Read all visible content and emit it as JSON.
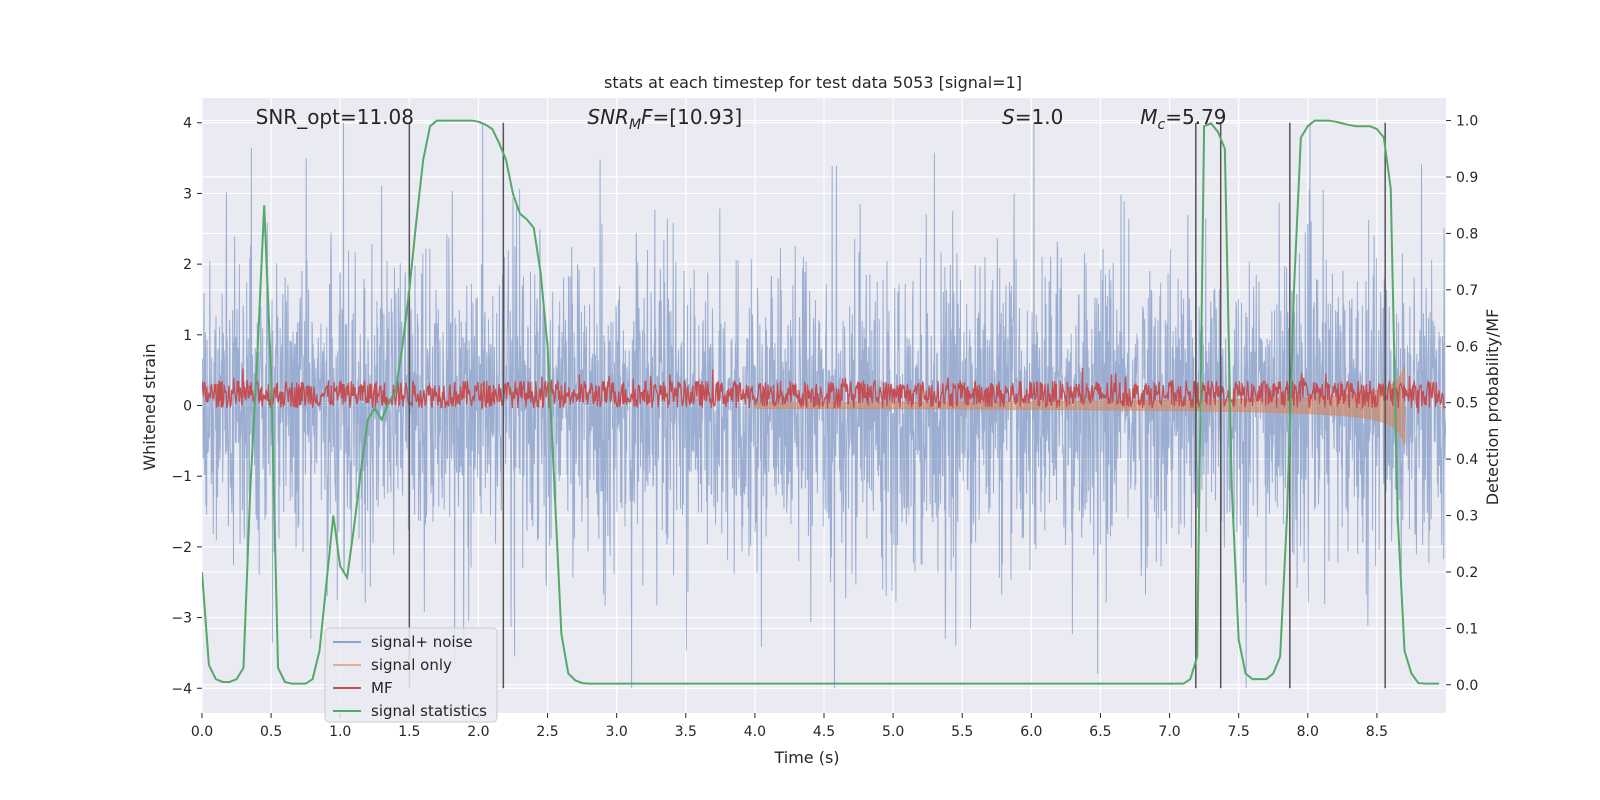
{
  "chart_data": {
    "type": "line",
    "title": "stats at each timestep for test data 5053 [signal=1]",
    "xlabel": "Time (s)",
    "ylabel": "Whitened strain",
    "y2label": "Detection probability/MF",
    "xlim": [
      0.0,
      9.0
    ],
    "ylim": [
      -4.35,
      4.35
    ],
    "y2lim": [
      -0.05,
      1.04
    ],
    "x_ticks": [
      0.0,
      0.5,
      1.0,
      1.5,
      2.0,
      2.5,
      3.0,
      3.5,
      4.0,
      4.5,
      5.0,
      5.5,
      6.0,
      6.5,
      7.0,
      7.5,
      8.0,
      8.5
    ],
    "x_tick_labels": [
      "0.0",
      "0.5",
      "1.0",
      "1.5",
      "2.0",
      "2.5",
      "3.0",
      "3.5",
      "4.0",
      "4.5",
      "5.0",
      "5.5",
      "6.0",
      "6.5",
      "7.0",
      "7.5",
      "8.0",
      "8.5"
    ],
    "y_ticks": [
      -4,
      -3,
      -2,
      -1,
      0,
      1,
      2,
      3,
      4
    ],
    "y_tick_labels": [
      "−4",
      "−3",
      "−2",
      "−1",
      "0",
      "1",
      "2",
      "3",
      "4"
    ],
    "y2_ticks": [
      0.0,
      0.1,
      0.2,
      0.3,
      0.4,
      0.5,
      0.6,
      0.7,
      0.8,
      0.9,
      1.0
    ],
    "y2_tick_labels": [
      "0.0",
      "0.1",
      "0.2",
      "0.3",
      "0.4",
      "0.5",
      "0.6",
      "0.7",
      "0.8",
      "0.9",
      "1.0"
    ],
    "grid": true,
    "legend_position": "lower-left",
    "annotations": [
      {
        "id": "snr-opt",
        "x": 0.2,
        "text": "SNR_opt=11.08"
      },
      {
        "id": "snr-mf",
        "x": 2.6,
        "text": "SNRₘF=[10.93]",
        "base": "SNR",
        "sub": "M",
        "tail": "F=[10.93]"
      },
      {
        "id": "s-value",
        "x": 5.6,
        "text": "S=1.0",
        "base": "S",
        "tail": "=1.0"
      },
      {
        "id": "mc-value",
        "x": 6.6,
        "text": "Mc=5.79",
        "base": "M",
        "sub": "c",
        "tail": "=5.79"
      }
    ],
    "vertical_lines": [
      1.5,
      2.18,
      7.19,
      7.37,
      7.87,
      8.56
    ],
    "series": [
      {
        "name": "signal+ noise",
        "color": "#4c72b0",
        "axis": "left",
        "kind": "noise",
        "amplitude_range": [
          -4.0,
          4.0
        ],
        "x_range": [
          0.0,
          9.0
        ]
      },
      {
        "name": "signal only",
        "color": "#dd8452",
        "axis": "left",
        "kind": "chirp",
        "chirp_start": 4.0,
        "chirp_end": 8.7,
        "amplitude_at_end": 1.0
      },
      {
        "name": "MF",
        "color": "#c44e52",
        "axis": "right",
        "kind": "mf",
        "baseline": 0.515,
        "spread": 0.035,
        "x_range": [
          0.0,
          9.0
        ]
      },
      {
        "name": "signal statistics",
        "color": "#55a868",
        "axis": "right",
        "x": [
          0.0,
          0.05,
          0.1,
          0.15,
          0.2,
          0.25,
          0.3,
          0.35,
          0.4,
          0.45,
          0.5,
          0.55,
          0.6,
          0.65,
          0.7,
          0.75,
          0.8,
          0.85,
          0.9,
          0.95,
          1.0,
          1.05,
          1.1,
          1.15,
          1.2,
          1.25,
          1.3,
          1.35,
          1.4,
          1.45,
          1.5,
          1.55,
          1.6,
          1.65,
          1.7,
          1.75,
          1.8,
          1.85,
          1.9,
          1.95,
          2.0,
          2.05,
          2.1,
          2.15,
          2.2,
          2.25,
          2.3,
          2.35,
          2.4,
          2.45,
          2.5,
          2.55,
          2.6,
          2.65,
          2.7,
          2.75,
          2.8,
          2.9,
          3.0,
          3.5,
          4.0,
          4.5,
          5.0,
          5.5,
          6.0,
          6.5,
          7.0,
          7.1,
          7.15,
          7.2,
          7.25,
          7.3,
          7.35,
          7.4,
          7.45,
          7.5,
          7.55,
          7.6,
          7.65,
          7.7,
          7.75,
          7.8,
          7.85,
          7.9,
          7.95,
          8.0,
          8.05,
          8.1,
          8.15,
          8.2,
          8.25,
          8.3,
          8.35,
          8.4,
          8.45,
          8.5,
          8.55,
          8.6,
          8.65,
          8.7,
          8.75,
          8.8,
          8.85,
          8.9,
          8.95
        ],
        "values": [
          0.2,
          0.035,
          0.01,
          0.005,
          0.005,
          0.01,
          0.03,
          0.35,
          0.58,
          0.85,
          0.55,
          0.03,
          0.005,
          0.002,
          0.002,
          0.002,
          0.01,
          0.06,
          0.18,
          0.3,
          0.21,
          0.19,
          0.28,
          0.38,
          0.47,
          0.49,
          0.47,
          0.5,
          0.52,
          0.6,
          0.7,
          0.82,
          0.93,
          0.99,
          1.0,
          1.0,
          1.0,
          1.0,
          1.0,
          1.0,
          0.998,
          0.993,
          0.985,
          0.96,
          0.93,
          0.87,
          0.835,
          0.825,
          0.81,
          0.73,
          0.6,
          0.35,
          0.09,
          0.02,
          0.008,
          0.003,
          0.002,
          0.002,
          0.002,
          0.002,
          0.002,
          0.002,
          0.002,
          0.002,
          0.002,
          0.002,
          0.002,
          0.002,
          0.01,
          0.05,
          0.99,
          0.995,
          0.98,
          0.95,
          0.35,
          0.08,
          0.02,
          0.01,
          0.01,
          0.01,
          0.02,
          0.05,
          0.3,
          0.7,
          0.97,
          0.99,
          1.0,
          1.0,
          1.0,
          0.998,
          0.995,
          0.992,
          0.99,
          0.99,
          0.99,
          0.985,
          0.97,
          0.88,
          0.3,
          0.06,
          0.02,
          0.003,
          0.002,
          0.002,
          0.002
        ]
      }
    ]
  }
}
